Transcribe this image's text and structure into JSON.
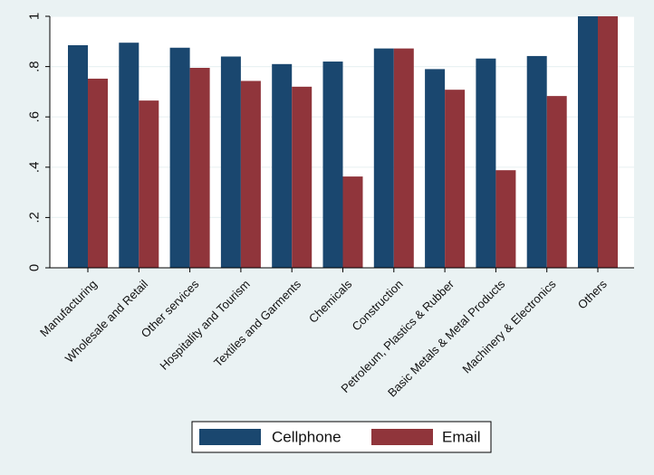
{
  "chart_data": {
    "type": "bar",
    "title": "",
    "xlabel": "",
    "ylabel": "",
    "ylim": [
      0,
      1
    ],
    "yticks": [
      0,
      0.2,
      0.4,
      0.6,
      0.8,
      1
    ],
    "ytick_labels": [
      "0",
      ".2",
      ".4",
      ".6",
      ".8",
      "1"
    ],
    "grid": true,
    "legend_position": "bottom",
    "categories": [
      "Manufacturing",
      "Wholesale and Retail",
      "Other services",
      "Hospitality and Tourism",
      "Textiles and Garments",
      "Chemicals",
      "Construction",
      "Petroleum, Plastics & Rubber",
      "Basic Metals & Metal Products",
      "Machinery & Electronics",
      "Others"
    ],
    "series": [
      {
        "name": "Cellphone",
        "color": "#1a476f",
        "values": [
          0.885,
          0.895,
          0.875,
          0.84,
          0.81,
          0.82,
          0.872,
          0.79,
          0.832,
          0.842,
          1.0
        ]
      },
      {
        "name": "Email",
        "color": "#90353b",
        "values": [
          0.752,
          0.665,
          0.795,
          0.743,
          0.72,
          0.363,
          0.872,
          0.708,
          0.388,
          0.683,
          1.0
        ]
      }
    ]
  }
}
